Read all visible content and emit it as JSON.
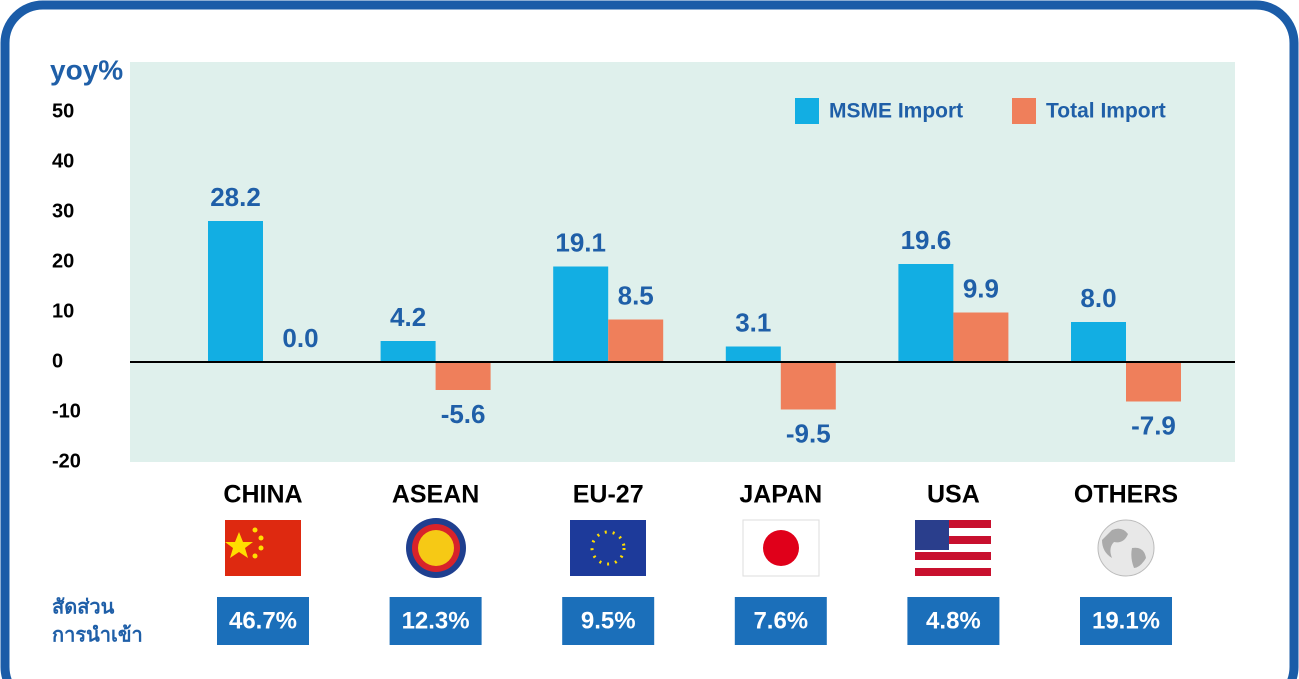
{
  "chart_data": {
    "type": "bar",
    "ylabel": "yoy%",
    "categories": [
      "CHINA",
      "ASEAN",
      "EU-27",
      "JAPAN",
      "USA",
      "OTHERS"
    ],
    "series": [
      {
        "name": "MSME Import",
        "color": "#12aee3",
        "values": [
          28.2,
          4.2,
          19.1,
          3.1,
          19.6,
          8.0
        ],
        "value_labels": [
          "28.2",
          "4.2",
          "19.1",
          "3.1",
          "19.6",
          "8.0"
        ]
      },
      {
        "name": "Total Import",
        "color": "#ef7f5b",
        "values": [
          0.0,
          -5.6,
          8.5,
          -9.5,
          9.9,
          -7.9
        ],
        "value_labels": [
          "0.0",
          "-5.6",
          "8.5",
          "-9.5",
          "9.9",
          "-7.9"
        ]
      }
    ],
    "ylim": [
      -20,
      60
    ],
    "yticks": [
      -20,
      -10,
      0,
      10,
      20,
      30,
      40,
      50
    ],
    "legend": "top-right",
    "share_title": [
      "สัดส่วน",
      "การนำเข้า"
    ],
    "shares": [
      46.7,
      12.3,
      9.5,
      7.6,
      4.8,
      19.1
    ],
    "share_labels": [
      "46.7%",
      "12.3%",
      "9.5%",
      "7.6%",
      "4.8%",
      "19.1%"
    ]
  }
}
